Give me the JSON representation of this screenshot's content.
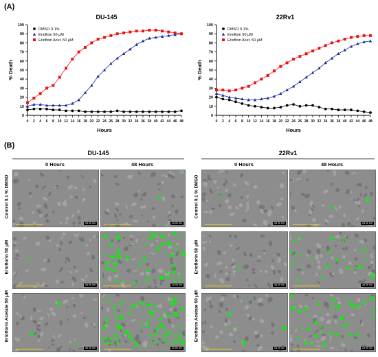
{
  "panel_a_label": "(A)",
  "panel_b_label": "(B)",
  "colors": {
    "dmso": "#000000",
    "eriofl": "#1a2a9a",
    "acet": "#ee1111",
    "cells_dead": "#22dd22",
    "micro_bg": "#8d8d8d"
  },
  "chart_data": [
    {
      "type": "line",
      "title": "DU-145",
      "xlabel": "Hours",
      "ylabel": "% Death",
      "xlim": [
        0,
        48
      ],
      "ylim": [
        0,
        100
      ],
      "xticks": [
        0,
        2,
        4,
        6,
        8,
        10,
        12,
        14,
        16,
        18,
        20,
        22,
        24,
        26,
        28,
        30,
        32,
        34,
        36,
        38,
        40,
        42,
        44,
        46,
        48
      ],
      "yticks": [
        0,
        10,
        20,
        30,
        40,
        50,
        60,
        70,
        80,
        90,
        100
      ],
      "legend_position": "top-left",
      "series": [
        {
          "name": "DMSO 0.1%",
          "marker": "circle",
          "color": "#000000",
          "x": [
            0,
            2,
            4,
            6,
            8,
            10,
            12,
            14,
            16,
            18,
            20,
            22,
            24,
            26,
            28,
            30,
            32,
            34,
            36,
            38,
            40,
            42,
            44,
            46,
            48
          ],
          "y": [
            6,
            7,
            7,
            7,
            6,
            6,
            5,
            5,
            5,
            4,
            4,
            4,
            4,
            4,
            5,
            4,
            4,
            4,
            4,
            4,
            4,
            4,
            4,
            4,
            5
          ]
        },
        {
          "name": "Eriofloin 50 μM",
          "marker": "triangle",
          "color": "#1a2a9a",
          "x": [
            0,
            2,
            4,
            6,
            8,
            10,
            12,
            14,
            16,
            18,
            20,
            22,
            24,
            26,
            28,
            30,
            32,
            34,
            36,
            38,
            40,
            42,
            44,
            46,
            48
          ],
          "y": [
            10,
            12,
            12,
            11,
            11,
            11,
            11,
            13,
            17,
            25,
            33,
            43,
            50,
            57,
            63,
            68,
            73,
            78,
            82,
            85,
            86,
            87,
            88,
            89,
            90
          ]
        },
        {
          "name": "Eriofloin Acet. 50 μM",
          "marker": "square",
          "color": "#ee1111",
          "x": [
            0,
            2,
            4,
            6,
            8,
            10,
            12,
            14,
            16,
            18,
            20,
            22,
            24,
            26,
            28,
            30,
            32,
            34,
            36,
            38,
            40,
            42,
            44,
            46,
            48
          ],
          "y": [
            14,
            19,
            24,
            30,
            33,
            42,
            52,
            62,
            70,
            75,
            80,
            84,
            86,
            88,
            90,
            91,
            92,
            93,
            93,
            94,
            94,
            93,
            92,
            91,
            90
          ]
        }
      ]
    },
    {
      "type": "line",
      "title": "22Rv1",
      "xlabel": "Hours",
      "ylabel": "% Death",
      "xlim": [
        0,
        48
      ],
      "ylim": [
        0,
        100
      ],
      "xticks": [
        0,
        2,
        4,
        6,
        8,
        10,
        12,
        14,
        16,
        18,
        20,
        22,
        24,
        26,
        28,
        30,
        32,
        34,
        36,
        38,
        40,
        42,
        44,
        46,
        48
      ],
      "yticks": [
        0,
        10,
        20,
        30,
        40,
        50,
        60,
        70,
        80,
        90,
        100
      ],
      "legend_position": "top-left",
      "series": [
        {
          "name": "DMSO 0.1%",
          "marker": "circle",
          "color": "#000000",
          "x": [
            0,
            2,
            4,
            6,
            8,
            10,
            12,
            14,
            16,
            18,
            20,
            22,
            24,
            26,
            28,
            30,
            32,
            34,
            36,
            38,
            40,
            42,
            44,
            46,
            48
          ],
          "y": [
            20,
            18,
            17,
            15,
            13,
            11,
            10,
            9,
            8,
            8,
            9,
            11,
            12,
            10,
            11,
            11,
            9,
            7,
            7,
            6,
            6,
            6,
            5,
            4,
            3
          ]
        },
        {
          "name": "Eriofloin 50 μM",
          "marker": "triangle",
          "color": "#1a2a9a",
          "x": [
            0,
            2,
            4,
            6,
            8,
            10,
            12,
            14,
            16,
            18,
            20,
            22,
            24,
            26,
            28,
            30,
            32,
            34,
            36,
            38,
            40,
            42,
            44,
            46,
            48
          ],
          "y": [
            24,
            22,
            20,
            19,
            18,
            17,
            17,
            18,
            19,
            21,
            24,
            28,
            32,
            37,
            42,
            47,
            52,
            58,
            63,
            68,
            72,
            76,
            79,
            81,
            82
          ]
        },
        {
          "name": "Eriofloin Acet. 50 μM",
          "marker": "square",
          "color": "#ee1111",
          "x": [
            0,
            2,
            4,
            6,
            8,
            10,
            12,
            14,
            16,
            18,
            20,
            22,
            24,
            26,
            28,
            30,
            32,
            34,
            36,
            38,
            40,
            42,
            44,
            46,
            48
          ],
          "y": [
            28,
            28,
            27,
            28,
            30,
            32,
            36,
            40,
            44,
            49,
            54,
            58,
            62,
            65,
            68,
            71,
            74,
            77,
            80,
            82,
            84,
            86,
            87,
            88,
            88
          ]
        }
      ]
    }
  ],
  "panel_b": {
    "left_group": {
      "title": "DU-145",
      "col_0h": "0 Hours",
      "col_48h": "48 Hours"
    },
    "right_group": {
      "title": "22Rv1",
      "col_0h": "0 Hours",
      "col_48h": "48 Hours"
    },
    "rows": [
      "Control  0.1 % DMSO",
      "Erioflorin 50 μM",
      "Erioflorin Acetate 50 μM"
    ],
    "timestamps": {
      "t0": "0d 0h 0m",
      "t48": "2d 0h 0m"
    }
  }
}
